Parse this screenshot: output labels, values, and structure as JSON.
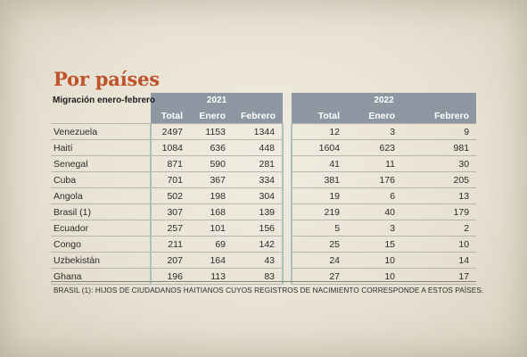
{
  "title": "Por países",
  "table": {
    "caption": "Migración enero-febrero",
    "year1": "2021",
    "year2": "2022",
    "subheaders": [
      "Total",
      "Enero",
      "Febrero",
      "Total",
      "Enero",
      "Febrero"
    ],
    "rows": [
      {
        "country": "Venezuela",
        "v": [
          "2497",
          "1153",
          "1344",
          "12",
          "3",
          "9"
        ]
      },
      {
        "country": "Haití",
        "v": [
          "1084",
          "636",
          "448",
          "1604",
          "623",
          "981"
        ]
      },
      {
        "country": "Senegal",
        "v": [
          "871",
          "590",
          "281",
          "41",
          "11",
          "30"
        ]
      },
      {
        "country": "Cuba",
        "v": [
          "701",
          "367",
          "334",
          "381",
          "176",
          "205"
        ]
      },
      {
        "country": "Angola",
        "v": [
          "502",
          "198",
          "304",
          "19",
          "6",
          "13"
        ]
      },
      {
        "country": "Brasil (1)",
        "v": [
          "307",
          "168",
          "139",
          "219",
          "40",
          "179"
        ]
      },
      {
        "country": "Ecuador",
        "v": [
          "257",
          "101",
          "156",
          "5",
          "3",
          "2"
        ]
      },
      {
        "country": "Congo",
        "v": [
          "211",
          "69",
          "142",
          "25",
          "15",
          "10"
        ]
      },
      {
        "country": "Uzbekistán",
        "v": [
          "207",
          "164",
          "43",
          "24",
          "10",
          "14"
        ]
      },
      {
        "country": "Ghana",
        "v": [
          "196",
          "113",
          "83",
          "27",
          "10",
          "17"
        ]
      }
    ]
  },
  "footnote": "BRASIL (1):  HIJOS DE CIUDADANOS HAITIANOS CUYOS REGISTROS DE NACIMIENTO CORRESPONDE A ESTOS PAÍSES.",
  "colors": {
    "title": "#c0522a",
    "header_band": "#8d97a2",
    "column_separator": "#a9c3b7",
    "background": "#ebe5d8"
  }
}
